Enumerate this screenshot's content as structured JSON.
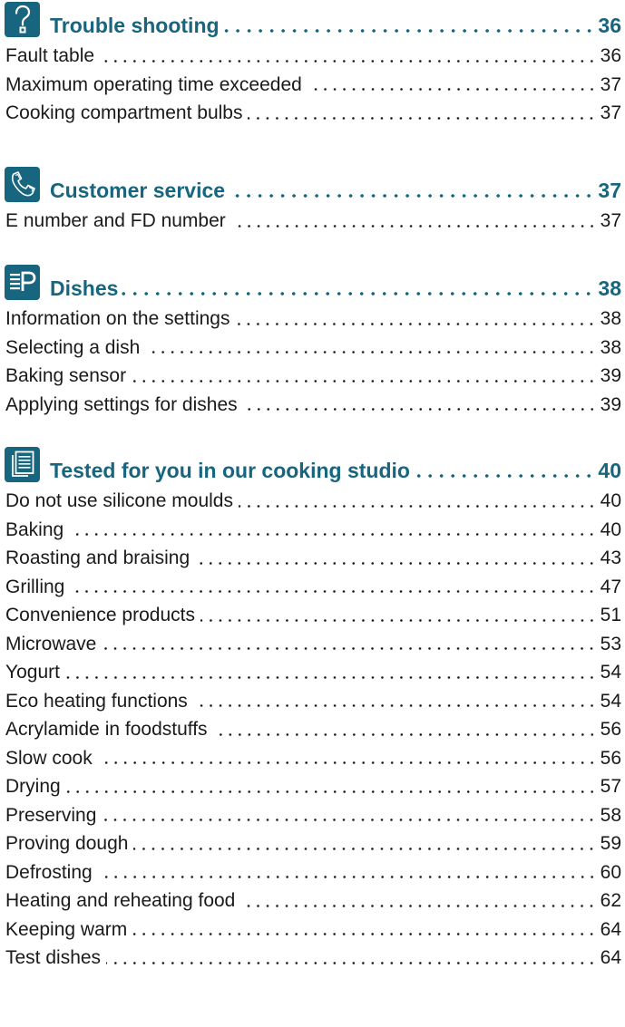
{
  "sections": [
    {
      "icon": "question-mark-icon",
      "title": "Trouble shooting",
      "page": "36",
      "entries": [
        {
          "label": "Fault table",
          "page": "36"
        },
        {
          "label": "Maximum operating time exceeded",
          "page": "37"
        },
        {
          "label": "Cooking compartment bulbs",
          "page": "37"
        }
      ]
    },
    {
      "icon": "telephone-icon",
      "title": "Customer service",
      "page": "37",
      "entries": [
        {
          "label": "E number and FD number",
          "page": "37"
        }
      ]
    },
    {
      "icon": "programme-list-icon",
      "title": "Dishes",
      "page": "38",
      "entries": [
        {
          "label": "Information on the settings",
          "page": "38"
        },
        {
          "label": "Selecting a dish",
          "page": "38"
        },
        {
          "label": "Baking sensor",
          "page": "39"
        },
        {
          "label": "Applying settings for dishes",
          "page": "39"
        }
      ]
    },
    {
      "icon": "documents-icon",
      "title": "Tested for you in our cooking studio",
      "page": "40",
      "entries": [
        {
          "label": "Do not use silicone moulds",
          "page": "40"
        },
        {
          "label": "Baking",
          "page": "40"
        },
        {
          "label": "Roasting and braising",
          "page": "43"
        },
        {
          "label": "Grilling",
          "page": "47"
        },
        {
          "label": "Convenience products",
          "page": "51"
        },
        {
          "label": "Microwave",
          "page": "53"
        },
        {
          "label": "Yogurt",
          "page": "54"
        },
        {
          "label": "Eco heating functions",
          "page": "54"
        },
        {
          "label": "Acrylamide in foodstuffs",
          "page": "56"
        },
        {
          "label": "Slow cook",
          "page": "56"
        },
        {
          "label": "Drying",
          "page": "57"
        },
        {
          "label": "Preserving",
          "page": "58"
        },
        {
          "label": "Proving dough",
          "page": "59"
        },
        {
          "label": "Defrosting",
          "page": "60"
        },
        {
          "label": "Heating and reheating food",
          "page": "62"
        },
        {
          "label": "Keeping warm",
          "page": "64"
        },
        {
          "label": "Test dishes",
          "page": "64"
        }
      ]
    }
  ],
  "colors": {
    "accent": "#17657e",
    "text": "#1a1a1a"
  }
}
